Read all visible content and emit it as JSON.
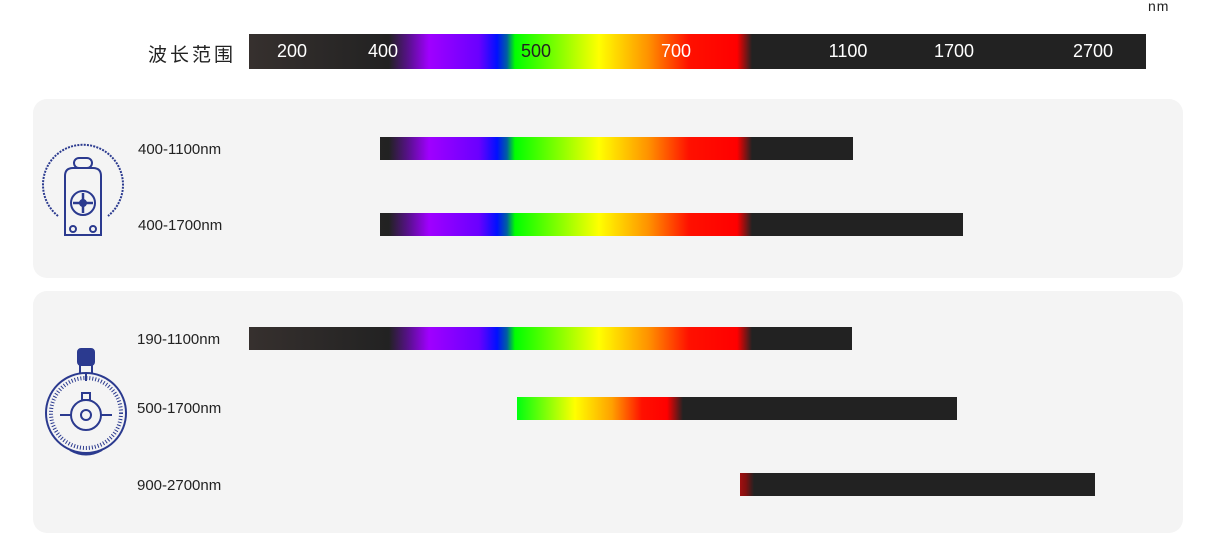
{
  "unit": "nm",
  "title": "波长范围",
  "scale_ticks": [
    "200",
    "400",
    "500",
    "700",
    "1100",
    "1700",
    "2700"
  ],
  "groups": [
    {
      "icon": "integrating-sphere-lamp-icon",
      "ranges": [
        "400-1100nm",
        "400-1700nm"
      ]
    },
    {
      "icon": "round-detector-icon",
      "ranges": [
        "190-1100nm",
        "500-1700nm",
        "900-2700nm"
      ]
    }
  ],
  "colors": {
    "icon": "#2b3a8f",
    "panel": "#f4f4f4",
    "bar_dark": "#222222"
  }
}
